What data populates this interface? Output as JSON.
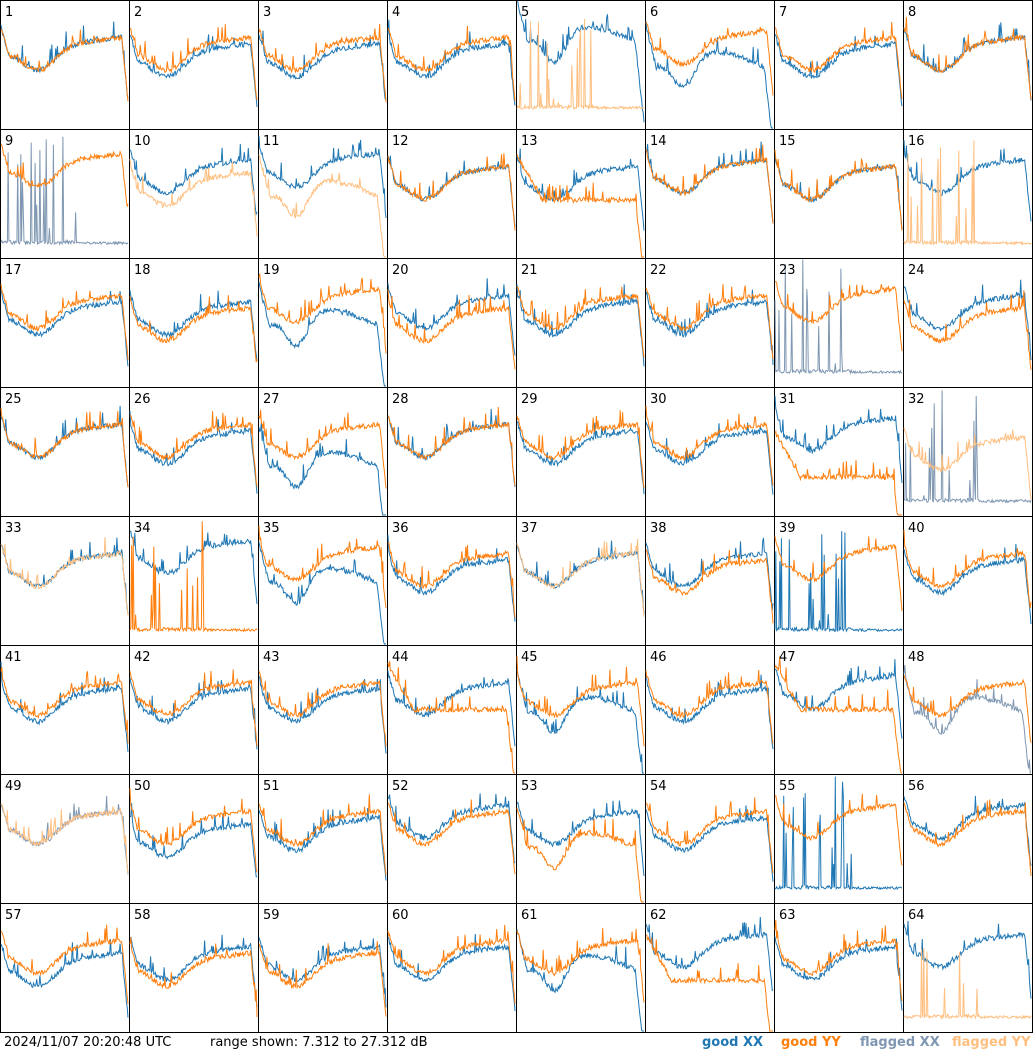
{
  "footer": {
    "timestamp": "2024/11/07 20:20:48 UTC",
    "range": "range shown: 7.312 to 27.312 dB",
    "legend": {
      "good_xx": "good XX",
      "good_yy": "good YY",
      "flagged_xx": "flagged XX",
      "flagged_yy": "flagged YY"
    }
  },
  "colors": {
    "good_xx": "#1f77b4",
    "good_yy": "#ff7f0e",
    "flagged_xx": "#7f97b2",
    "flagged_yy": "#ffbf80"
  },
  "chart_data": {
    "type": "line",
    "grid": [
      8,
      8
    ],
    "ylim": [
      7.312,
      27.312
    ],
    "yunit": "dB",
    "panels": [
      {
        "n": "1",
        "xx": {
          "shape": "normal",
          "level": 0.6,
          "status": "good"
        },
        "yy": {
          "shape": "normal",
          "level": 0.6,
          "status": "good"
        }
      },
      {
        "n": "2",
        "xx": {
          "shape": "normal",
          "level": 0.55,
          "status": "good"
        },
        "yy": {
          "shape": "normal",
          "level": 0.6,
          "status": "good"
        }
      },
      {
        "n": "3",
        "xx": {
          "shape": "normal",
          "level": 0.55,
          "status": "good"
        },
        "yy": {
          "shape": "normal",
          "level": 0.6,
          "status": "good"
        }
      },
      {
        "n": "4",
        "xx": {
          "shape": "normal",
          "level": 0.55,
          "status": "good"
        },
        "yy": {
          "shape": "normal",
          "level": 0.6,
          "status": "good"
        }
      },
      {
        "n": "5",
        "xx": {
          "shape": "low_dip",
          "level": 0.65,
          "status": "good"
        },
        "yy": {
          "shape": "spikes",
          "level": 0.15,
          "status": "flagged"
        }
      },
      {
        "n": "6",
        "xx": {
          "shape": "low_dip",
          "level": 0.45,
          "status": "good"
        },
        "yy": {
          "shape": "normal",
          "level": 0.65,
          "status": "good"
        }
      },
      {
        "n": "7",
        "xx": {
          "shape": "normal",
          "level": 0.55,
          "status": "good"
        },
        "yy": {
          "shape": "normal",
          "level": 0.6,
          "status": "good"
        }
      },
      {
        "n": "8",
        "xx": {
          "shape": "normal",
          "level": 0.6,
          "status": "good"
        },
        "yy": {
          "shape": "normal",
          "level": 0.6,
          "status": "good"
        }
      },
      {
        "n": "9",
        "xx": {
          "shape": "spikes",
          "level": 0.1,
          "status": "flagged"
        },
        "yy": {
          "shape": "normal",
          "level": 0.7,
          "status": "good"
        }
      },
      {
        "n": "10",
        "xx": {
          "shape": "normal",
          "level": 0.65,
          "status": "good"
        },
        "yy": {
          "shape": "normal",
          "level": 0.55,
          "status": "flagged"
        }
      },
      {
        "n": "11",
        "xx": {
          "shape": "normal",
          "level": 0.7,
          "status": "good"
        },
        "yy": {
          "shape": "low_dip",
          "level": 0.45,
          "status": "flagged"
        }
      },
      {
        "n": "12",
        "xx": {
          "shape": "normal",
          "level": 0.6,
          "status": "good"
        },
        "yy": {
          "shape": "normal",
          "level": 0.6,
          "status": "good"
        }
      },
      {
        "n": "13",
        "xx": {
          "shape": "normal",
          "level": 0.6,
          "status": "good"
        },
        "yy": {
          "shape": "low_flat",
          "level": 0.45,
          "status": "good"
        }
      },
      {
        "n": "14",
        "xx": {
          "shape": "normal",
          "level": 0.65,
          "status": "good"
        },
        "yy": {
          "shape": "normal",
          "level": 0.65,
          "status": "good"
        }
      },
      {
        "n": "15",
        "xx": {
          "shape": "normal",
          "level": 0.6,
          "status": "good"
        },
        "yy": {
          "shape": "normal",
          "level": 0.6,
          "status": "good"
        }
      },
      {
        "n": "16",
        "xx": {
          "shape": "normal",
          "level": 0.65,
          "status": "good"
        },
        "yy": {
          "shape": "spikes",
          "level": 0.1,
          "status": "flagged"
        }
      },
      {
        "n": "17",
        "xx": {
          "shape": "normal",
          "level": 0.55,
          "status": "good"
        },
        "yy": {
          "shape": "normal",
          "level": 0.6,
          "status": "good"
        }
      },
      {
        "n": "18",
        "xx": {
          "shape": "normal",
          "level": 0.55,
          "status": "good"
        },
        "yy": {
          "shape": "normal",
          "level": 0.5,
          "status": "good"
        }
      },
      {
        "n": "19",
        "xx": {
          "shape": "low_dip",
          "level": 0.45,
          "status": "good"
        },
        "yy": {
          "shape": "normal",
          "level": 0.65,
          "status": "good"
        }
      },
      {
        "n": "20",
        "xx": {
          "shape": "normal",
          "level": 0.6,
          "status": "good"
        },
        "yy": {
          "shape": "normal",
          "level": 0.5,
          "status": "good"
        }
      },
      {
        "n": "21",
        "xx": {
          "shape": "normal",
          "level": 0.55,
          "status": "good"
        },
        "yy": {
          "shape": "normal",
          "level": 0.6,
          "status": "good"
        }
      },
      {
        "n": "22",
        "xx": {
          "shape": "normal",
          "level": 0.55,
          "status": "good"
        },
        "yy": {
          "shape": "normal",
          "level": 0.6,
          "status": "good"
        }
      },
      {
        "n": "23",
        "xx": {
          "shape": "spikes",
          "level": 0.1,
          "status": "flagged"
        },
        "yy": {
          "shape": "normal",
          "level": 0.65,
          "status": "good"
        }
      },
      {
        "n": "24",
        "xx": {
          "shape": "normal",
          "level": 0.6,
          "status": "good"
        },
        "yy": {
          "shape": "normal",
          "level": 0.5,
          "status": "good"
        }
      },
      {
        "n": "25",
        "xx": {
          "shape": "normal",
          "level": 0.6,
          "status": "good"
        },
        "yy": {
          "shape": "normal",
          "level": 0.6,
          "status": "good"
        }
      },
      {
        "n": "26",
        "xx": {
          "shape": "normal",
          "level": 0.55,
          "status": "good"
        },
        "yy": {
          "shape": "normal",
          "level": 0.6,
          "status": "good"
        }
      },
      {
        "n": "27",
        "xx": {
          "shape": "low_dip",
          "level": 0.35,
          "status": "good"
        },
        "yy": {
          "shape": "normal",
          "level": 0.6,
          "status": "good"
        }
      },
      {
        "n": "28",
        "xx": {
          "shape": "normal",
          "level": 0.6,
          "status": "good"
        },
        "yy": {
          "shape": "normal",
          "level": 0.6,
          "status": "good"
        }
      },
      {
        "n": "29",
        "xx": {
          "shape": "normal",
          "level": 0.55,
          "status": "good"
        },
        "yy": {
          "shape": "normal",
          "level": 0.6,
          "status": "good"
        }
      },
      {
        "n": "30",
        "xx": {
          "shape": "normal",
          "level": 0.55,
          "status": "good"
        },
        "yy": {
          "shape": "normal",
          "level": 0.6,
          "status": "good"
        }
      },
      {
        "n": "31",
        "xx": {
          "shape": "normal",
          "level": 0.65,
          "status": "good"
        },
        "yy": {
          "shape": "low_flat",
          "level": 0.3,
          "status": "good"
        }
      },
      {
        "n": "32",
        "xx": {
          "shape": "spikes",
          "level": 0.1,
          "status": "flagged"
        },
        "yy": {
          "shape": "normal",
          "level": 0.5,
          "status": "flagged"
        }
      },
      {
        "n": "33",
        "xx": {
          "shape": "normal",
          "level": 0.6,
          "status": "good"
        },
        "yy": {
          "shape": "normal",
          "level": 0.6,
          "status": "flagged"
        }
      },
      {
        "n": "34",
        "xx": {
          "shape": "normal",
          "level": 0.7,
          "status": "good"
        },
        "yy": {
          "shape": "spikes",
          "level": 0.1,
          "status": "good"
        }
      },
      {
        "n": "35",
        "xx": {
          "shape": "low_dip",
          "level": 0.45,
          "status": "good"
        },
        "yy": {
          "shape": "normal",
          "level": 0.65,
          "status": "good"
        }
      },
      {
        "n": "36",
        "xx": {
          "shape": "normal",
          "level": 0.55,
          "status": "good"
        },
        "yy": {
          "shape": "normal",
          "level": 0.6,
          "status": "good"
        }
      },
      {
        "n": "37",
        "xx": {
          "shape": "normal",
          "level": 0.6,
          "status": "good"
        },
        "yy": {
          "shape": "normal",
          "level": 0.6,
          "status": "flagged"
        }
      },
      {
        "n": "38",
        "xx": {
          "shape": "normal",
          "level": 0.6,
          "status": "good"
        },
        "yy": {
          "shape": "normal",
          "level": 0.55,
          "status": "good"
        }
      },
      {
        "n": "39",
        "xx": {
          "shape": "spikes",
          "level": 0.1,
          "status": "good"
        },
        "yy": {
          "shape": "normal",
          "level": 0.65,
          "status": "good"
        }
      },
      {
        "n": "40",
        "xx": {
          "shape": "normal",
          "level": 0.55,
          "status": "good"
        },
        "yy": {
          "shape": "normal",
          "level": 0.6,
          "status": "good"
        }
      },
      {
        "n": "41",
        "xx": {
          "shape": "normal",
          "level": 0.55,
          "status": "good"
        },
        "yy": {
          "shape": "normal",
          "level": 0.6,
          "status": "good"
        }
      },
      {
        "n": "42",
        "xx": {
          "shape": "normal",
          "level": 0.55,
          "status": "good"
        },
        "yy": {
          "shape": "normal",
          "level": 0.6,
          "status": "good"
        }
      },
      {
        "n": "43",
        "xx": {
          "shape": "normal",
          "level": 0.55,
          "status": "good"
        },
        "yy": {
          "shape": "normal",
          "level": 0.6,
          "status": "good"
        }
      },
      {
        "n": "44",
        "xx": {
          "shape": "normal",
          "level": 0.6,
          "status": "good"
        },
        "yy": {
          "shape": "low_flat",
          "level": 0.5,
          "status": "good"
        }
      },
      {
        "n": "45",
        "xx": {
          "shape": "low_dip",
          "level": 0.45,
          "status": "good"
        },
        "yy": {
          "shape": "normal",
          "level": 0.6,
          "status": "good"
        }
      },
      {
        "n": "46",
        "xx": {
          "shape": "normal",
          "level": 0.55,
          "status": "good"
        },
        "yy": {
          "shape": "normal",
          "level": 0.6,
          "status": "good"
        }
      },
      {
        "n": "47",
        "xx": {
          "shape": "normal",
          "level": 0.65,
          "status": "good"
        },
        "yy": {
          "shape": "low_flat",
          "level": 0.5,
          "status": "good"
        }
      },
      {
        "n": "48",
        "xx": {
          "shape": "low_dip",
          "level": 0.45,
          "status": "flagged"
        },
        "yy": {
          "shape": "normal",
          "level": 0.6,
          "status": "good"
        }
      },
      {
        "n": "49",
        "xx": {
          "shape": "normal",
          "level": 0.6,
          "status": "flagged"
        },
        "yy": {
          "shape": "normal",
          "level": 0.6,
          "status": "flagged"
        }
      },
      {
        "n": "50",
        "xx": {
          "shape": "normal",
          "level": 0.5,
          "status": "good"
        },
        "yy": {
          "shape": "normal",
          "level": 0.6,
          "status": "good"
        }
      },
      {
        "n": "51",
        "xx": {
          "shape": "normal",
          "level": 0.55,
          "status": "good"
        },
        "yy": {
          "shape": "normal",
          "level": 0.6,
          "status": "good"
        }
      },
      {
        "n": "52",
        "xx": {
          "shape": "normal",
          "level": 0.65,
          "status": "good"
        },
        "yy": {
          "shape": "normal",
          "level": 0.6,
          "status": "good"
        }
      },
      {
        "n": "53",
        "xx": {
          "shape": "normal",
          "level": 0.6,
          "status": "good"
        },
        "yy": {
          "shape": "low_dip",
          "level": 0.4,
          "status": "good"
        }
      },
      {
        "n": "54",
        "xx": {
          "shape": "normal",
          "level": 0.55,
          "status": "good"
        },
        "yy": {
          "shape": "normal",
          "level": 0.6,
          "status": "good"
        }
      },
      {
        "n": "55",
        "xx": {
          "shape": "spikes",
          "level": 0.1,
          "status": "good"
        },
        "yy": {
          "shape": "normal",
          "level": 0.65,
          "status": "good"
        }
      },
      {
        "n": "56",
        "xx": {
          "shape": "normal",
          "level": 0.65,
          "status": "good"
        },
        "yy": {
          "shape": "normal",
          "level": 0.6,
          "status": "good"
        }
      },
      {
        "n": "57",
        "xx": {
          "shape": "normal",
          "level": 0.5,
          "status": "good"
        },
        "yy": {
          "shape": "normal",
          "level": 0.6,
          "status": "good"
        }
      },
      {
        "n": "58",
        "xx": {
          "shape": "normal",
          "level": 0.55,
          "status": "good"
        },
        "yy": {
          "shape": "normal",
          "level": 0.5,
          "status": "good"
        }
      },
      {
        "n": "59",
        "xx": {
          "shape": "normal",
          "level": 0.55,
          "status": "good"
        },
        "yy": {
          "shape": "normal",
          "level": 0.5,
          "status": "good"
        }
      },
      {
        "n": "60",
        "xx": {
          "shape": "normal",
          "level": 0.55,
          "status": "good"
        },
        "yy": {
          "shape": "normal",
          "level": 0.6,
          "status": "good"
        }
      },
      {
        "n": "61",
        "xx": {
          "shape": "low_dip",
          "level": 0.45,
          "status": "good"
        },
        "yy": {
          "shape": "normal",
          "level": 0.6,
          "status": "good"
        }
      },
      {
        "n": "62",
        "xx": {
          "shape": "normal",
          "level": 0.65,
          "status": "good"
        },
        "yy": {
          "shape": "low_flat",
          "level": 0.4,
          "status": "good"
        }
      },
      {
        "n": "63",
        "xx": {
          "shape": "normal",
          "level": 0.55,
          "status": "good"
        },
        "yy": {
          "shape": "normal",
          "level": 0.6,
          "status": "good"
        }
      },
      {
        "n": "64",
        "xx": {
          "shape": "normal",
          "level": 0.65,
          "status": "good"
        },
        "yy": {
          "shape": "spikes",
          "level": 0.1,
          "status": "flagged"
        }
      }
    ]
  }
}
